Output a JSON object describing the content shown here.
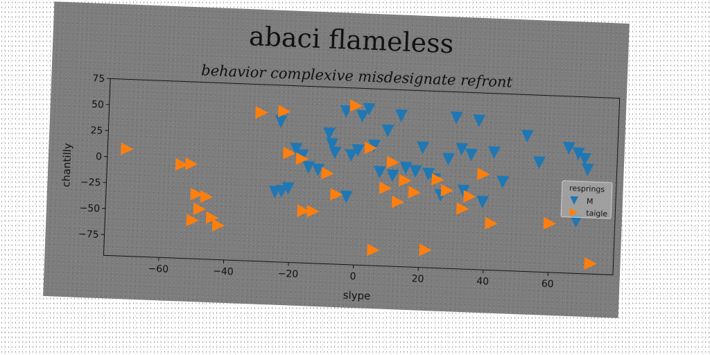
{
  "figure": {
    "title": "abaci flameless"
  },
  "chart_data": {
    "type": "scatter",
    "title": "behavior complexive misdesignate refront",
    "xlabel": "slype",
    "ylabel": "chantilly",
    "xlim": [
      -77,
      80
    ],
    "ylim": [
      -95,
      75
    ],
    "xticks": [
      -60,
      -40,
      -20,
      0,
      20,
      40,
      60
    ],
    "yticks": [
      75,
      50,
      25,
      0,
      -25,
      -50,
      -75
    ],
    "grid": false,
    "legend": {
      "title": "resprings",
      "placement": "right"
    },
    "series": [
      {
        "name": "M",
        "color": "#1f77b4",
        "marker": "triangle-down",
        "points": [
          [
            -24,
            40
          ],
          [
            -25,
            -28
          ],
          [
            -23,
            -27
          ],
          [
            -21,
            -24
          ],
          [
            -19,
            14
          ],
          [
            -17,
            8
          ],
          [
            -15,
            -3
          ],
          [
            -12,
            -5
          ],
          [
            -9,
            30
          ],
          [
            -8,
            20
          ],
          [
            -7,
            12
          ],
          [
            -4,
            52
          ],
          [
            -3,
            -30
          ],
          [
            -2,
            10
          ],
          [
            0,
            15
          ],
          [
            1,
            48
          ],
          [
            3,
            55
          ],
          [
            5,
            20
          ],
          [
            7,
            -5
          ],
          [
            9,
            35
          ],
          [
            11,
            -8
          ],
          [
            13,
            50
          ],
          [
            15,
            0
          ],
          [
            18,
            -3
          ],
          [
            20,
            20
          ],
          [
            22,
            -5
          ],
          [
            24,
            -10
          ],
          [
            26,
            -25
          ],
          [
            28,
            10
          ],
          [
            30,
            50
          ],
          [
            32,
            20
          ],
          [
            33,
            -20
          ],
          [
            35,
            15
          ],
          [
            37,
            48
          ],
          [
            39,
            -30
          ],
          [
            42,
            18
          ],
          [
            45,
            -10
          ],
          [
            52,
            35
          ],
          [
            56,
            10
          ],
          [
            65,
            25
          ],
          [
            68,
            20
          ],
          [
            70,
            15
          ],
          [
            71,
            5
          ],
          [
            68,
            -45
          ]
        ]
      },
      {
        "name": "taigle",
        "color": "#ff7f0e",
        "marker": "triangle-right",
        "points": [
          [
            -71,
            8
          ],
          [
            -54,
            -5
          ],
          [
            -51,
            -4
          ],
          [
            -49,
            -33
          ],
          [
            -48,
            -47
          ],
          [
            -50,
            -58
          ],
          [
            -44,
            -55
          ],
          [
            -46,
            -35
          ],
          [
            -42,
            -62
          ],
          [
            -30,
            48
          ],
          [
            -23,
            50
          ],
          [
            -21,
            10
          ],
          [
            -17,
            5
          ],
          [
            -16,
            -45
          ],
          [
            -13,
            -45
          ],
          [
            -9,
            -8
          ],
          [
            -6,
            -28
          ],
          [
            -1,
            58
          ],
          [
            4,
            18
          ],
          [
            6,
            -80
          ],
          [
            9,
            -20
          ],
          [
            11,
            5
          ],
          [
            13,
            -33
          ],
          [
            15,
            -12
          ],
          [
            18,
            -23
          ],
          [
            22,
            -78
          ],
          [
            25,
            -10
          ],
          [
            28,
            -20
          ],
          [
            33,
            -37
          ],
          [
            35,
            -25
          ],
          [
            39,
            -3
          ],
          [
            42,
            -50
          ],
          [
            60,
            -48
          ],
          [
            73,
            -85
          ]
        ]
      }
    ]
  }
}
